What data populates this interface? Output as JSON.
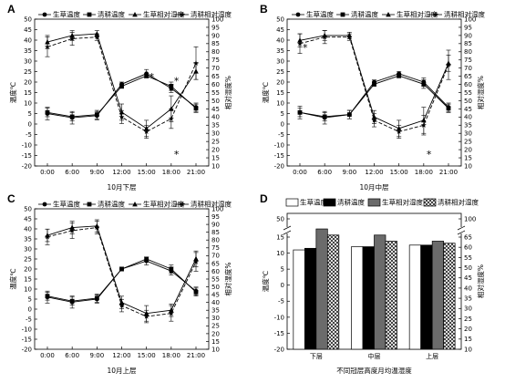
{
  "chart_data": [
    {
      "panel": "A",
      "type": "line",
      "categories": [
        "0:00",
        "6:00",
        "9:00",
        "12:00",
        "15:00",
        "18:00",
        "21:00"
      ],
      "xlabel": "10月下层",
      "ylabel": "温度℃",
      "y2label": "相对湿度%",
      "ylim": [
        -20,
        50
      ],
      "y2lim": [
        10,
        100
      ],
      "legend": [
        "生草温度",
        "清耕温度",
        "生草相对湿度",
        "清耕相对湿度"
      ],
      "series": [
        {
          "name": "生草温度",
          "axis": "left",
          "marker": "circle",
          "dash": false,
          "values": [
            5,
            3,
            4,
            19,
            24,
            17,
            8
          ],
          "err": [
            3,
            3,
            2,
            1,
            2,
            2,
            2
          ]
        },
        {
          "name": "清耕温度",
          "axis": "left",
          "marker": "square",
          "dash": false,
          "values": [
            5.5,
            3.5,
            4.5,
            18,
            23,
            18,
            7.5
          ],
          "err": [
            2,
            2,
            2,
            1,
            1,
            2,
            2
          ]
        },
        {
          "name": "生草相对湿度",
          "axis": "right",
          "marker": "triangle",
          "dash": false,
          "values": [
            86,
            90,
            91,
            43,
            33,
            45,
            68
          ],
          "err": [
            4,
            3,
            2,
            5,
            5,
            8,
            5
          ]
        },
        {
          "name": "清耕相对湿度",
          "axis": "right",
          "marker": "star",
          "dash": true,
          "values": [
            83,
            88,
            89,
            40,
            31,
            39,
            73
          ],
          "err": [
            6,
            4,
            2,
            4,
            4,
            6,
            10
          ]
        }
      ],
      "annotations": [
        {
          "text": "*",
          "x": "15:00",
          "y": 23
        },
        {
          "text": "*",
          "x": "18:00",
          "y": 21
        },
        {
          "text": "*",
          "x": "18:00",
          "y": -14
        }
      ]
    },
    {
      "panel": "B",
      "type": "line",
      "categories": [
        "0:00",
        "6:00",
        "9:00",
        "12:00",
        "15:00",
        "18:00",
        "21:00"
      ],
      "xlabel": "10月中层",
      "ylabel": "温度℃",
      "y2label": "相对湿度%",
      "ylim": [
        -20,
        50
      ],
      "y2lim": [
        10,
        100
      ],
      "legend": [
        "生草温度",
        "清耕温度",
        "生草相对湿度",
        "清耕相对湿度"
      ],
      "series": [
        {
          "name": "生草温度",
          "axis": "left",
          "marker": "circle",
          "dash": false,
          "values": [
            5.5,
            3,
            4.5,
            20,
            24,
            20,
            8
          ],
          "err": [
            3,
            3,
            2,
            1,
            1,
            2,
            2
          ]
        },
        {
          "name": "清耕温度",
          "axis": "left",
          "marker": "square",
          "dash": false,
          "values": [
            5.5,
            3.5,
            4.5,
            19,
            23,
            19,
            7.5
          ],
          "err": [
            2,
            2,
            2,
            1,
            1,
            2,
            2
          ]
        },
        {
          "name": "生草相对湿度",
          "axis": "right",
          "marker": "triangle",
          "dash": false,
          "values": [
            87,
            90,
            90,
            40,
            33,
            38,
            73
          ],
          "err": [
            4,
            3,
            2,
            4,
            5,
            8,
            5
          ]
        },
        {
          "name": "清耕相对湿度",
          "axis": "right",
          "marker": "star",
          "dash": true,
          "values": [
            85,
            89,
            89,
            38,
            31,
            35,
            72
          ],
          "err": [
            6,
            4,
            2,
            4,
            4,
            6,
            9
          ]
        }
      ],
      "annotations": [
        {
          "text": "*",
          "x": "0:00",
          "y": 37
        },
        {
          "text": "*",
          "x": "18:00",
          "y": -14
        }
      ]
    },
    {
      "panel": "C",
      "type": "line",
      "categories": [
        "0:00",
        "6:00",
        "9:00",
        "12:00",
        "15:00",
        "18:00",
        "21:00"
      ],
      "xlabel": "10月上层",
      "ylabel": "温度℃",
      "y2label": "相对湿度%",
      "ylim": [
        -20,
        50
      ],
      "y2lim": [
        10,
        100
      ],
      "legend": [
        "生草温度",
        "清耕温度",
        "生草相对湿度",
        "清耕相对湿度"
      ],
      "series": [
        {
          "name": "生草温度",
          "axis": "left",
          "marker": "circle",
          "dash": false,
          "values": [
            6,
            3.5,
            5,
            20,
            24,
            19,
            9
          ],
          "err": [
            3,
            3,
            2,
            1,
            2,
            2,
            2
          ]
        },
        {
          "name": "清耕温度",
          "axis": "left",
          "marker": "square",
          "dash": false,
          "values": [
            6.5,
            4,
            5.5,
            20,
            25,
            20,
            8.5
          ],
          "err": [
            2,
            2,
            2,
            1,
            1,
            2,
            2
          ]
        },
        {
          "name": "生草相对湿度",
          "axis": "right",
          "marker": "triangle",
          "dash": false,
          "values": [
            83,
            88,
            89,
            40,
            33,
            35,
            68
          ],
          "err": [
            4,
            4,
            4,
            4,
            5,
            4,
            5
          ]
        },
        {
          "name": "清耕相对湿度",
          "axis": "right",
          "marker": "star",
          "dash": true,
          "values": [
            82,
            86,
            88,
            38,
            31,
            33,
            66
          ],
          "err": [
            5,
            5,
            4,
            4,
            4,
            5,
            6
          ]
        }
      ],
      "annotations": []
    },
    {
      "panel": "D",
      "type": "bar",
      "categories": [
        "下层",
        "中层",
        "上层"
      ],
      "xlabel": "不同冠层高度月均温湿度",
      "ylabel": "温度℃",
      "y2label": "相对湿度%",
      "ylim": [
        -20,
        50
      ],
      "y2lim": [
        10,
        100
      ],
      "legend": [
        "生草温度",
        "清耕温度",
        "生草相对湿度",
        "清耕相对湿度"
      ],
      "series": [
        {
          "name": "生草温度",
          "axis": "left",
          "fill": "#ffffff",
          "values": [
            11,
            12,
            12.5
          ]
        },
        {
          "name": "清耕温度",
          "axis": "left",
          "fill": "#000000",
          "values": [
            11.5,
            12,
            12.5
          ]
        },
        {
          "name": "生草相对湿度",
          "axis": "right",
          "fill": "#6b6b6b",
          "values": [
            69,
            66,
            63
          ]
        },
        {
          "name": "清耕相对湿度",
          "axis": "right",
          "fill": "checker",
          "values": [
            66,
            63,
            62
          ]
        }
      ]
    }
  ],
  "panel_labels": [
    "A",
    "B",
    "C",
    "D"
  ],
  "ticks": {
    "left_major": [
      -20,
      -15,
      -10,
      -5,
      0,
      5,
      10,
      15,
      20,
      25,
      30,
      35,
      40,
      45,
      50
    ],
    "right_major": [
      10,
      15,
      20,
      25,
      30,
      35,
      40,
      45,
      50,
      55,
      60,
      65,
      70,
      75,
      80,
      85,
      90,
      95,
      100
    ],
    "d_left": [
      -20,
      -15,
      -10,
      -5,
      0,
      5,
      10,
      15,
      50
    ],
    "d_right": [
      10,
      15,
      20,
      25,
      30,
      35,
      40,
      45,
      50,
      55,
      60,
      65,
      100
    ]
  }
}
